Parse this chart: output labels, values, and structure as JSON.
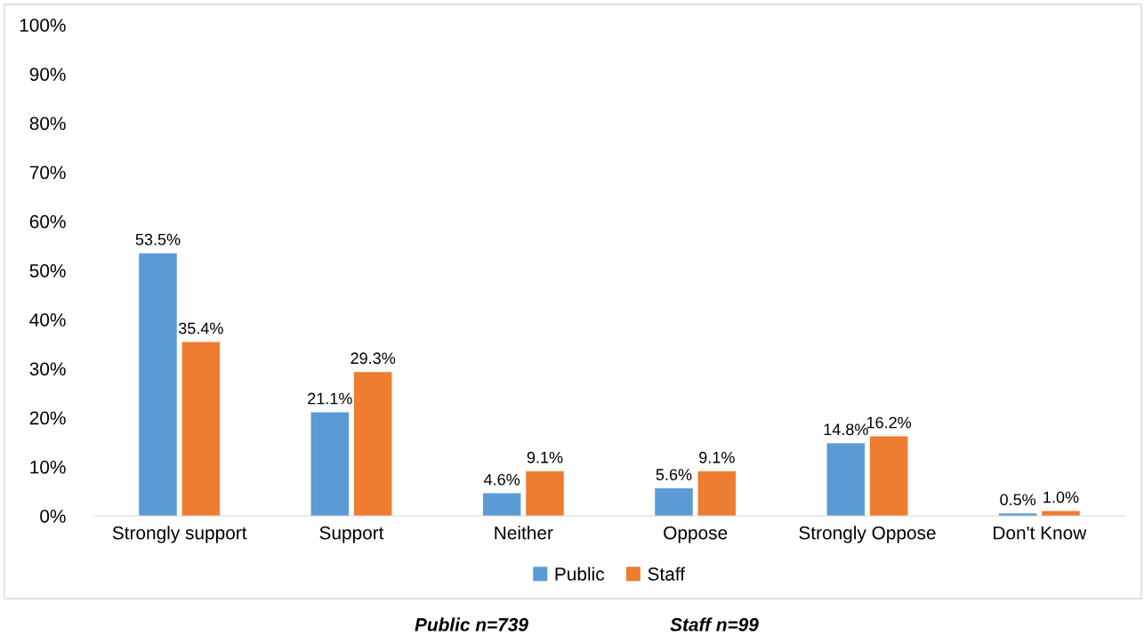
{
  "chart_data": {
    "type": "bar",
    "categories": [
      "Strongly support",
      "Support",
      "Neither",
      "Oppose",
      "Strongly Oppose",
      "Don't Know"
    ],
    "series": [
      {
        "name": "Public",
        "color": "#5b9bd5",
        "values": [
          53.5,
          21.1,
          4.6,
          5.6,
          14.8,
          0.5
        ],
        "value_labels": [
          "53.5%",
          "21.1%",
          "4.6%",
          "5.6%",
          "14.8%",
          "0.5%"
        ]
      },
      {
        "name": "Staff",
        "color": "#ed7d31",
        "values": [
          35.4,
          29.3,
          9.1,
          9.1,
          16.2,
          1.0
        ],
        "value_labels": [
          "35.4%",
          "29.3%",
          "9.1%",
          "9.1%",
          "16.2%",
          "1.0%"
        ]
      }
    ],
    "ylim": [
      0,
      100
    ],
    "yticks": [
      {
        "value": 0,
        "label": "0%"
      },
      {
        "value": 10,
        "label": "10%"
      },
      {
        "value": 20,
        "label": "20%"
      },
      {
        "value": 30,
        "label": "30%"
      },
      {
        "value": 40,
        "label": "40%"
      },
      {
        "value": 50,
        "label": "50%"
      },
      {
        "value": 60,
        "label": "60%"
      },
      {
        "value": 70,
        "label": "70%"
      },
      {
        "value": 80,
        "label": "80%"
      },
      {
        "value": 90,
        "label": "90%"
      },
      {
        "value": 100,
        "label": "100%"
      }
    ],
    "grid": false,
    "legend": "bottom",
    "annotations": [
      "Public n=739",
      "Staff n=99"
    ]
  }
}
